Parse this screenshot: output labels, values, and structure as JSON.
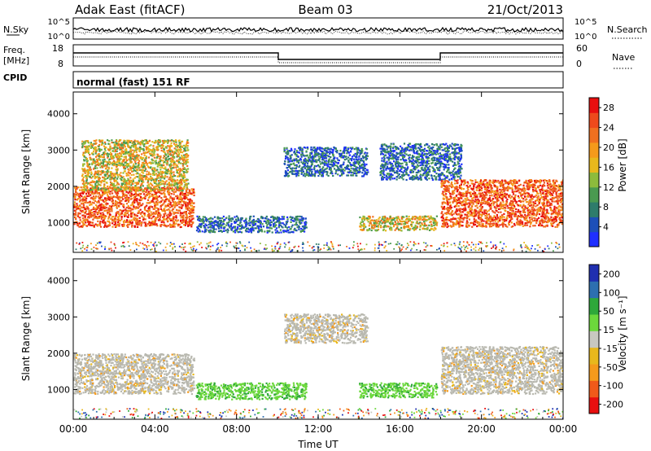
{
  "header": {
    "station": "Adak East (fitACF)",
    "beam": "Beam 03",
    "date": "21/Oct/2013"
  },
  "panels": {
    "nsky_label": "N.Sky",
    "nsky_ticks": [
      "10^5",
      "10^0"
    ],
    "nsearch_label": "N.Search",
    "nsearch_ticks": [
      "10^5",
      "10^0"
    ],
    "freq_label_line1": "Freq.",
    "freq_label_line2": "[MHz]",
    "freq_ticks": [
      "18",
      "8"
    ],
    "nave_label": "Nave",
    "nave_ticks": [
      "60",
      "0"
    ],
    "cpid_label": "CPID",
    "cpid_text": "normal (fast) 151 RF"
  },
  "colors": {
    "power": [
      "#1f2fff",
      "#1d4fb8",
      "#2e7c6b",
      "#4a9a50",
      "#8dbb3c",
      "#e8b81c",
      "#f59a1b",
      "#f07020",
      "#ee4a1c",
      "#e80f0f"
    ],
    "velocity": [
      "#e80f0f",
      "#f05a1a",
      "#f59a1b",
      "#e8b81c",
      "#c8c8c0",
      "#6cd83c",
      "#2ea83a",
      "#2d6fb0",
      "#1f2fb0"
    ],
    "ground_scatter": "#b9b9b0"
  },
  "chart_data": [
    {
      "type": "heatmap",
      "name": "power",
      "xlabel": "",
      "ylabel": "Slant Range [km]",
      "x_ticks": [
        "00:00",
        "04:00",
        "08:00",
        "12:00",
        "16:00",
        "20:00",
        "00:00"
      ],
      "y_ticks": [
        "1000",
        "2000",
        "3000",
        "4000"
      ],
      "xlim_hours": [
        0,
        24
      ],
      "ylim_km": [
        180,
        4600
      ],
      "colorbar_label": "Power [dB]",
      "colorbar_ticks": [
        "28",
        "24",
        "20",
        "16",
        "12",
        "8",
        "4"
      ],
      "colorbar_range": [
        0,
        30
      ],
      "echo_regions": [
        {
          "t0": 0.0,
          "t1": 5.9,
          "r0": 900,
          "r1": 2000,
          "level": "high"
        },
        {
          "t0": 0.4,
          "t1": 5.6,
          "r0": 1900,
          "r1": 3300,
          "level": "medium"
        },
        {
          "t0": 6.0,
          "t1": 11.4,
          "r0": 750,
          "r1": 1200,
          "level": "low"
        },
        {
          "t0": 10.3,
          "t1": 14.4,
          "r0": 2300,
          "r1": 3100,
          "level": "low"
        },
        {
          "t0": 14.0,
          "t1": 17.8,
          "r0": 800,
          "r1": 1200,
          "level": "medium"
        },
        {
          "t0": 15.0,
          "t1": 19.0,
          "r0": 2200,
          "r1": 3200,
          "level": "low"
        },
        {
          "t0": 18.0,
          "t1": 24.0,
          "r0": 900,
          "r1": 2200,
          "level": "high"
        }
      ]
    },
    {
      "type": "heatmap",
      "name": "velocity",
      "xlabel": "Time UT",
      "ylabel": "Slant Range [km]",
      "x_ticks": [
        "00:00",
        "04:00",
        "08:00",
        "12:00",
        "16:00",
        "20:00",
        "00:00"
      ],
      "y_ticks": [
        "1000",
        "2000",
        "3000",
        "4000"
      ],
      "xlim_hours": [
        0,
        24
      ],
      "ylim_km": [
        180,
        4600
      ],
      "colorbar_label": "Velocity [m s⁻¹]",
      "colorbar_ticks": [
        "200",
        "100",
        "50",
        "15",
        "-15",
        "-50",
        "-100",
        "-200"
      ],
      "colorbar_range": [
        -250,
        250
      ],
      "echo_regions": [
        {
          "t0": 0.0,
          "t1": 5.9,
          "r0": 900,
          "r1": 2000,
          "level": "ground"
        },
        {
          "t0": 6.0,
          "t1": 11.4,
          "r0": 750,
          "r1": 1200,
          "level": "positive"
        },
        {
          "t0": 10.3,
          "t1": 14.4,
          "r0": 2300,
          "r1": 3100,
          "level": "ground"
        },
        {
          "t0": 14.0,
          "t1": 17.8,
          "r0": 800,
          "r1": 1200,
          "level": "positive"
        },
        {
          "t0": 18.0,
          "t1": 24.0,
          "r0": 900,
          "r1": 2200,
          "level": "ground"
        }
      ]
    }
  ]
}
